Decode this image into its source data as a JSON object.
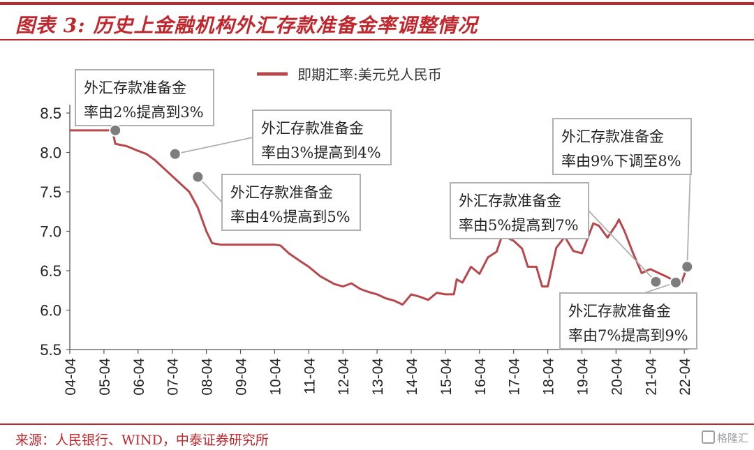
{
  "title": "图表 3:  历史上金融机构外汇存款准备金率调整情况",
  "source": "来源：人民银行、WIND，中泰证券研究所",
  "watermark": "格隆汇",
  "colors": {
    "accent": "#c0272d",
    "line": "#b8474b",
    "box_border": "#b0b0b0",
    "dot": "#7d7d7d"
  },
  "chart_data": {
    "type": "line",
    "legend": [
      "即期汇率:美元兑人民币"
    ],
    "legend_position": "top-center",
    "ylim": [
      5.5,
      8.5
    ],
    "yticks": [
      "5.5",
      "6.0",
      "6.5",
      "7.0",
      "7.5",
      "8.0",
      "8.5"
    ],
    "xticks": [
      "04-04",
      "05-04",
      "06-04",
      "07-04",
      "08-04",
      "09-04",
      "10-04",
      "11-04",
      "12-04",
      "13-04",
      "14-04",
      "15-04",
      "16-04",
      "17-04",
      "18-04",
      "19-04",
      "20-04",
      "21-04",
      "22-04"
    ],
    "grid": false,
    "series": [
      {
        "name": "即期汇率:美元兑人民币",
        "points": [
          [
            "04-04",
            8.28
          ],
          [
            "05-04",
            8.28
          ],
          [
            "05-07",
            8.28
          ],
          [
            "05-08",
            8.11
          ],
          [
            "05-12",
            8.08
          ],
          [
            "06-04",
            8.02
          ],
          [
            "06-07",
            7.98
          ],
          [
            "06-10",
            7.9
          ],
          [
            "07-01",
            7.8
          ],
          [
            "07-04",
            7.7
          ],
          [
            "07-07",
            7.6
          ],
          [
            "07-10",
            7.5
          ],
          [
            "08-01",
            7.3
          ],
          [
            "08-04",
            7.0
          ],
          [
            "08-06",
            6.85
          ],
          [
            "08-09",
            6.83
          ],
          [
            "09-04",
            6.83
          ],
          [
            "10-04",
            6.83
          ],
          [
            "10-06",
            6.82
          ],
          [
            "10-09",
            6.72
          ],
          [
            "11-01",
            6.62
          ],
          [
            "11-04",
            6.55
          ],
          [
            "11-08",
            6.43
          ],
          [
            "12-01",
            6.33
          ],
          [
            "12-04",
            6.3
          ],
          [
            "12-07",
            6.34
          ],
          [
            "12-10",
            6.27
          ],
          [
            "13-01",
            6.23
          ],
          [
            "13-04",
            6.2
          ],
          [
            "13-07",
            6.15
          ],
          [
            "13-10",
            6.12
          ],
          [
            "14-01",
            6.07
          ],
          [
            "14-04",
            6.2
          ],
          [
            "14-07",
            6.17
          ],
          [
            "14-10",
            6.13
          ],
          [
            "15-01",
            6.22
          ],
          [
            "15-04",
            6.2
          ],
          [
            "15-07",
            6.2
          ],
          [
            "15-08",
            6.39
          ],
          [
            "15-10",
            6.35
          ],
          [
            "16-01",
            6.55
          ],
          [
            "16-04",
            6.46
          ],
          [
            "16-07",
            6.67
          ],
          [
            "16-10",
            6.74
          ],
          [
            "16-12",
            6.95
          ],
          [
            "17-04",
            6.88
          ],
          [
            "17-07",
            6.78
          ],
          [
            "17-09",
            6.55
          ],
          [
            "17-12",
            6.55
          ],
          [
            "18-02",
            6.3
          ],
          [
            "18-04",
            6.3
          ],
          [
            "18-07",
            6.79
          ],
          [
            "18-10",
            6.93
          ],
          [
            "19-01",
            6.75
          ],
          [
            "19-04",
            6.72
          ],
          [
            "19-08",
            7.1
          ],
          [
            "19-10",
            7.07
          ],
          [
            "20-01",
            6.92
          ],
          [
            "20-04",
            7.08
          ],
          [
            "20-05",
            7.15
          ],
          [
            "20-07",
            7.0
          ],
          [
            "20-10",
            6.72
          ],
          [
            "21-01",
            6.47
          ],
          [
            "21-04",
            6.52
          ],
          [
            "21-07",
            6.47
          ],
          [
            "21-10",
            6.42
          ],
          [
            "22-01",
            6.36
          ],
          [
            "22-03",
            6.35
          ],
          [
            "22-04",
            6.45
          ],
          [
            "22-05",
            6.55
          ]
        ]
      }
    ],
    "annotations": [
      {
        "line1": "外汇存款准备金",
        "line2": "率由2%提高到3%",
        "date": "05-08",
        "y": 8.28
      },
      {
        "line1": "外汇存款准备金",
        "line2": "率由3%提高到4%",
        "date": "07-05",
        "y": 7.98
      },
      {
        "line1": "外汇存款准备金",
        "line2": "率由4%提高到5%",
        "date": "08-01",
        "y": 7.69
      },
      {
        "line1": "外汇存款准备金",
        "line2": "率由5%提高到7%",
        "date": "21-06",
        "y": 6.36
      },
      {
        "line1": "外汇存款准备金",
        "line2": "率由7%提高到9%",
        "date": "22-01",
        "y": 6.35
      },
      {
        "line1": "外汇存款准备金",
        "line2": "率由9%下调至8%",
        "date": "22-05",
        "y": 6.55
      }
    ]
  }
}
